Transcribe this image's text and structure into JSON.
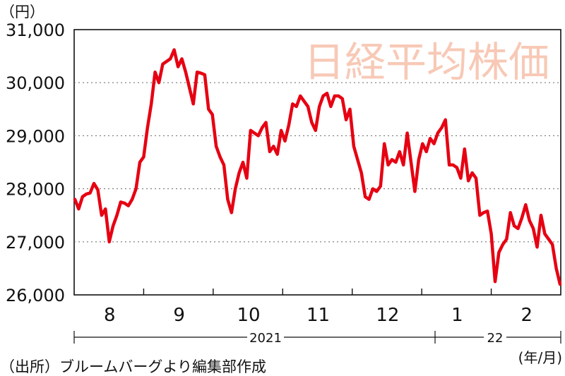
{
  "chart_data": {
    "type": "line",
    "title": "日経平均株価",
    "ylabel": "（円）",
    "xlabel": "(年/月)",
    "source": "（出所）ブルームバーグより編集部作成",
    "ylim": [
      26000,
      31000
    ],
    "yticks": [
      26000,
      27000,
      28000,
      29000,
      30000,
      31000
    ],
    "ytick_labels": [
      "26,000",
      "27,000",
      "28,000",
      "29,000",
      "30,000",
      "31,000"
    ],
    "grid": true,
    "month_labels": [
      "8",
      "9",
      "10",
      "11",
      "12",
      "1",
      "2"
    ],
    "year_labels": [
      "2021",
      "22"
    ],
    "line_color": "#e60012",
    "title_color": "#f7c9b6",
    "series": [
      {
        "values": [
          27800,
          27620,
          27850,
          27900,
          27920,
          28100,
          27980,
          27500,
          27620,
          27000,
          27300,
          27500,
          27750,
          27730,
          27680,
          27800,
          28000,
          28500,
          28600,
          29150,
          29600,
          30200,
          30000,
          30350,
          30400,
          30450,
          30620,
          30300,
          30450,
          30200,
          29900,
          29600,
          30200,
          30180,
          30150,
          29500,
          29400,
          28800,
          28600,
          28450,
          27800,
          27550,
          28000,
          28300,
          28500,
          28200,
          29100,
          29050,
          29000,
          29150,
          29250,
          28700,
          28800,
          28650,
          29100,
          28900,
          29200,
          29600,
          29550,
          29750,
          29650,
          29550,
          29250,
          29100,
          29550,
          29750,
          29800,
          29550,
          29750,
          29750,
          29700,
          29300,
          29500,
          28800,
          28550,
          28300,
          27850,
          27800,
          28000,
          27950,
          28050,
          28850,
          28450,
          28550,
          28500,
          28700,
          28450,
          29050,
          28500,
          27950,
          28550,
          28850,
          28700,
          28950,
          28850,
          29050,
          29150,
          29300,
          28450,
          28450,
          28400,
          28200,
          28750,
          28150,
          28300,
          28200,
          27500,
          27550,
          27580,
          27150,
          26250,
          26800,
          26950,
          27050,
          27550,
          27300,
          27250,
          27450,
          27700,
          27400,
          27250,
          26900,
          27500,
          27150,
          27050,
          26950,
          26500,
          26200
        ]
      }
    ]
  }
}
